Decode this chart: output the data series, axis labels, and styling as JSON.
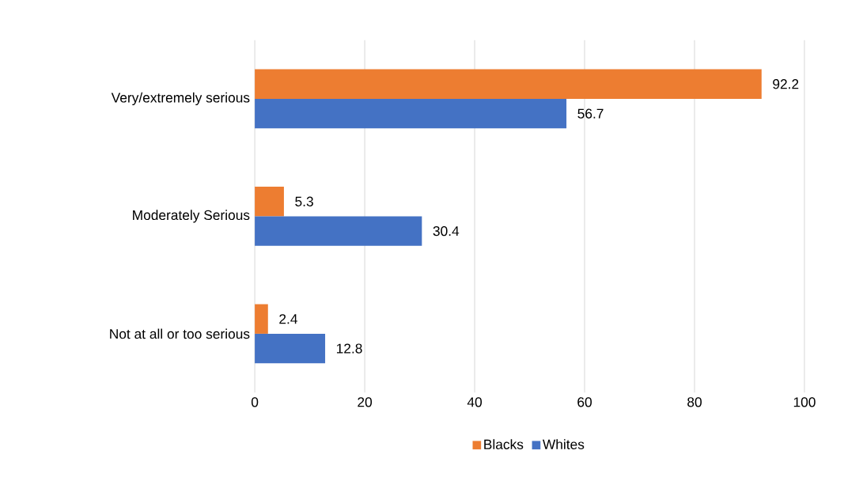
{
  "chart_data": {
    "type": "bar",
    "orientation": "horizontal",
    "categories": [
      "Very/extremely serious",
      "Moderately Serious",
      "Not at all or too serious"
    ],
    "series": [
      {
        "name": "Blacks",
        "color": "#ed7d31",
        "values": [
          92.2,
          5.3,
          2.4
        ]
      },
      {
        "name": "Whites",
        "color": "#4472c4",
        "values": [
          56.7,
          30.4,
          12.8
        ]
      }
    ],
    "xlim": [
      0,
      100
    ],
    "xticks": [
      0,
      20,
      40,
      60,
      80,
      100
    ],
    "grid": "x",
    "legend": "bottom",
    "data_labels": true
  }
}
